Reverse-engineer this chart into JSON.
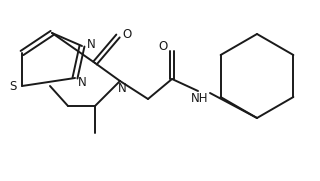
{
  "background_color": "#ffffff",
  "line_color": "#1a1a1a",
  "line_width": 1.4,
  "figure_width": 3.2,
  "figure_height": 1.81,
  "dpi": 100,
  "xlim": [
    0,
    320
  ],
  "ylim": [
    0,
    181
  ]
}
